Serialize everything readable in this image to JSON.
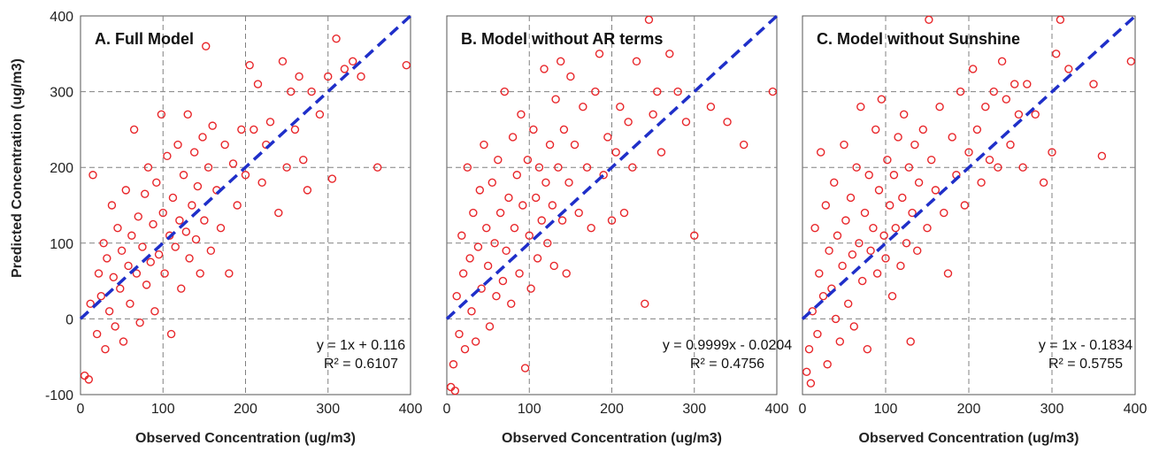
{
  "chart_data": [
    {
      "type": "scatter",
      "title": "A. Full Model",
      "xlabel": "Observed Concentration (ug/m3)",
      "ylabel": "Predicted Concentration (ug/m3)",
      "xlim": [
        0,
        400
      ],
      "ylim": [
        -100,
        400
      ],
      "x_ticks": [
        "0",
        "100",
        "200",
        "300",
        "400"
      ],
      "y_ticks": [
        "-100",
        "0",
        "100",
        "200",
        "300",
        "400"
      ],
      "grid": true,
      "equation": "y = 1x + 0.116",
      "r_squared": "R² = 0.6107",
      "fit": {
        "slope": 1,
        "intercept": 0.116
      },
      "colors": {
        "points": "#e8262a",
        "fit_line": "#1f2fc9"
      },
      "points_sample": [
        [
          5,
          -75
        ],
        [
          10,
          -80
        ],
        [
          12,
          20
        ],
        [
          15,
          190
        ],
        [
          20,
          -20
        ],
        [
          22,
          60
        ],
        [
          25,
          30
        ],
        [
          28,
          100
        ],
        [
          30,
          -40
        ],
        [
          32,
          80
        ],
        [
          35,
          10
        ],
        [
          38,
          150
        ],
        [
          40,
          55
        ],
        [
          42,
          -10
        ],
        [
          45,
          120
        ],
        [
          48,
          40
        ],
        [
          50,
          90
        ],
        [
          52,
          -30
        ],
        [
          55,
          170
        ],
        [
          58,
          70
        ],
        [
          60,
          20
        ],
        [
          62,
          110
        ],
        [
          65,
          250
        ],
        [
          68,
          60
        ],
        [
          70,
          135
        ],
        [
          72,
          -5
        ],
        [
          75,
          95
        ],
        [
          78,
          165
        ],
        [
          80,
          45
        ],
        [
          82,
          200
        ],
        [
          85,
          75
        ],
        [
          88,
          125
        ],
        [
          90,
          10
        ],
        [
          92,
          180
        ],
        [
          95,
          85
        ],
        [
          98,
          270
        ],
        [
          100,
          140
        ],
        [
          102,
          60
        ],
        [
          105,
          215
        ],
        [
          108,
          110
        ],
        [
          110,
          -20
        ],
        [
          112,
          160
        ],
        [
          115,
          95
        ],
        [
          118,
          230
        ],
        [
          120,
          130
        ],
        [
          122,
          40
        ],
        [
          125,
          190
        ],
        [
          128,
          115
        ],
        [
          130,
          270
        ],
        [
          132,
          80
        ],
        [
          135,
          150
        ],
        [
          138,
          220
        ],
        [
          140,
          105
        ],
        [
          142,
          175
        ],
        [
          145,
          60
        ],
        [
          148,
          240
        ],
        [
          150,
          130
        ],
        [
          152,
          360
        ],
        [
          155,
          200
        ],
        [
          158,
          90
        ],
        [
          160,
          255
        ],
        [
          165,
          170
        ],
        [
          170,
          120
        ],
        [
          175,
          230
        ],
        [
          180,
          60
        ],
        [
          185,
          205
        ],
        [
          190,
          150
        ],
        [
          195,
          250
        ],
        [
          200,
          190
        ],
        [
          205,
          335
        ],
        [
          210,
          250
        ],
        [
          215,
          310
        ],
        [
          220,
          180
        ],
        [
          225,
          230
        ],
        [
          230,
          260
        ],
        [
          240,
          140
        ],
        [
          245,
          340
        ],
        [
          250,
          200
        ],
        [
          255,
          300
        ],
        [
          260,
          250
        ],
        [
          265,
          320
        ],
        [
          270,
          210
        ],
        [
          275,
          170
        ],
        [
          280,
          300
        ],
        [
          290,
          270
        ],
        [
          300,
          320
        ],
        [
          305,
          185
        ],
        [
          310,
          370
        ],
        [
          320,
          330
        ],
        [
          330,
          340
        ],
        [
          340,
          320
        ],
        [
          360,
          200
        ],
        [
          395,
          335
        ]
      ]
    },
    {
      "type": "scatter",
      "title": "B. Model without AR terms",
      "xlabel": "Observed Concentration (ug/m3)",
      "ylabel": "",
      "xlim": [
        0,
        400
      ],
      "ylim": [
        -100,
        400
      ],
      "x_ticks": [
        "0",
        "100",
        "200",
        "300",
        "400"
      ],
      "grid": true,
      "equation": "y = 0.9999x - 0.0204",
      "r_squared": "R² = 0.4756",
      "fit": {
        "slope": 0.9999,
        "intercept": -0.0204
      },
      "colors": {
        "points": "#e8262a",
        "fit_line": "#1f2fc9"
      },
      "points_sample": [
        [
          5,
          -90
        ],
        [
          8,
          -60
        ],
        [
          10,
          -95
        ],
        [
          12,
          30
        ],
        [
          15,
          -20
        ],
        [
          18,
          110
        ],
        [
          20,
          60
        ],
        [
          22,
          -40
        ],
        [
          25,
          200
        ],
        [
          28,
          80
        ],
        [
          30,
          10
        ],
        [
          32,
          140
        ],
        [
          35,
          -30
        ],
        [
          38,
          95
        ],
        [
          40,
          170
        ],
        [
          42,
          40
        ],
        [
          45,
          230
        ],
        [
          48,
          120
        ],
        [
          50,
          70
        ],
        [
          52,
          -10
        ],
        [
          55,
          180
        ],
        [
          58,
          100
        ],
        [
          60,
          30
        ],
        [
          62,
          210
        ],
        [
          65,
          140
        ],
        [
          68,
          50
        ],
        [
          70,
          300
        ],
        [
          72,
          90
        ],
        [
          75,
          160
        ],
        [
          78,
          20
        ],
        [
          80,
          240
        ],
        [
          82,
          120
        ],
        [
          85,
          190
        ],
        [
          88,
          60
        ],
        [
          90,
          270
        ],
        [
          92,
          150
        ],
        [
          95,
          -65
        ],
        [
          98,
          210
        ],
        [
          100,
          110
        ],
        [
          102,
          40
        ],
        [
          105,
          250
        ],
        [
          108,
          160
        ],
        [
          110,
          80
        ],
        [
          112,
          200
        ],
        [
          115,
          130
        ],
        [
          118,
          330
        ],
        [
          120,
          180
        ],
        [
          122,
          100
        ],
        [
          125,
          230
        ],
        [
          128,
          150
        ],
        [
          130,
          70
        ],
        [
          132,
          290
        ],
        [
          135,
          200
        ],
        [
          138,
          340
        ],
        [
          140,
          130
        ],
        [
          142,
          250
        ],
        [
          145,
          60
        ],
        [
          148,
          180
        ],
        [
          150,
          320
        ],
        [
          155,
          230
        ],
        [
          160,
          140
        ],
        [
          165,
          280
        ],
        [
          170,
          200
        ],
        [
          175,
          120
        ],
        [
          180,
          300
        ],
        [
          185,
          350
        ],
        [
          190,
          190
        ],
        [
          195,
          240
        ],
        [
          200,
          130
        ],
        [
          205,
          220
        ],
        [
          210,
          280
        ],
        [
          215,
          140
        ],
        [
          220,
          260
        ],
        [
          225,
          200
        ],
        [
          230,
          340
        ],
        [
          240,
          20
        ],
        [
          245,
          395
        ],
        [
          250,
          270
        ],
        [
          255,
          300
        ],
        [
          260,
          220
        ],
        [
          270,
          350
        ],
        [
          280,
          300
        ],
        [
          290,
          260
        ],
        [
          300,
          110
        ],
        [
          320,
          280
        ],
        [
          340,
          260
        ],
        [
          360,
          230
        ],
        [
          395,
          300
        ]
      ]
    },
    {
      "type": "scatter",
      "title": "C. Model without Sunshine",
      "xlabel": "Observed Concentration (ug/m3)",
      "ylabel": "",
      "xlim": [
        0,
        400
      ],
      "ylim": [
        -100,
        400
      ],
      "x_ticks": [
        "0",
        "100",
        "200",
        "300",
        "400"
      ],
      "grid": true,
      "equation": "y = 1x - 0.1834",
      "r_squared": "R² = 0.5755",
      "fit": {
        "slope": 1,
        "intercept": -0.1834
      },
      "colors": {
        "points": "#e8262a",
        "fit_line": "#1f2fc9"
      },
      "points_sample": [
        [
          5,
          -70
        ],
        [
          8,
          -40
        ],
        [
          10,
          -85
        ],
        [
          12,
          10
        ],
        [
          15,
          120
        ],
        [
          18,
          -20
        ],
        [
          20,
          60
        ],
        [
          22,
          220
        ],
        [
          25,
          30
        ],
        [
          28,
          150
        ],
        [
          30,
          -60
        ],
        [
          32,
          90
        ],
        [
          35,
          40
        ],
        [
          38,
          180
        ],
        [
          40,
          0
        ],
        [
          42,
          110
        ],
        [
          45,
          -30
        ],
        [
          48,
          70
        ],
        [
          50,
          230
        ],
        [
          52,
          130
        ],
        [
          55,
          20
        ],
        [
          58,
          160
        ],
        [
          60,
          85
        ],
        [
          62,
          -10
        ],
        [
          65,
          200
        ],
        [
          68,
          100
        ],
        [
          70,
          280
        ],
        [
          72,
          50
        ],
        [
          75,
          140
        ],
        [
          78,
          -40
        ],
        [
          80,
          190
        ],
        [
          82,
          90
        ],
        [
          85,
          120
        ],
        [
          88,
          250
        ],
        [
          90,
          60
        ],
        [
          92,
          170
        ],
        [
          95,
          290
        ],
        [
          98,
          110
        ],
        [
          100,
          80
        ],
        [
          102,
          210
        ],
        [
          105,
          150
        ],
        [
          108,
          30
        ],
        [
          110,
          190
        ],
        [
          112,
          120
        ],
        [
          115,
          240
        ],
        [
          118,
          70
        ],
        [
          120,
          160
        ],
        [
          122,
          270
        ],
        [
          125,
          100
        ],
        [
          128,
          200
        ],
        [
          130,
          -30
        ],
        [
          132,
          140
        ],
        [
          135,
          230
        ],
        [
          138,
          90
        ],
        [
          140,
          180
        ],
        [
          145,
          250
        ],
        [
          150,
          120
        ],
        [
          152,
          395
        ],
        [
          155,
          210
        ],
        [
          160,
          170
        ],
        [
          165,
          280
        ],
        [
          170,
          140
        ],
        [
          175,
          60
        ],
        [
          180,
          240
        ],
        [
          185,
          190
        ],
        [
          190,
          300
        ],
        [
          195,
          150
        ],
        [
          200,
          220
        ],
        [
          205,
          330
        ],
        [
          210,
          250
        ],
        [
          215,
          180
        ],
        [
          220,
          280
        ],
        [
          225,
          210
        ],
        [
          230,
          300
        ],
        [
          235,
          200
        ],
        [
          240,
          340
        ],
        [
          245,
          290
        ],
        [
          250,
          230
        ],
        [
          255,
          310
        ],
        [
          260,
          270
        ],
        [
          265,
          200
        ],
        [
          270,
          310
        ],
        [
          280,
          270
        ],
        [
          290,
          180
        ],
        [
          300,
          220
        ],
        [
          305,
          350
        ],
        [
          310,
          395
        ],
        [
          320,
          330
        ],
        [
          350,
          310
        ],
        [
          360,
          215
        ],
        [
          395,
          340
        ]
      ]
    }
  ]
}
